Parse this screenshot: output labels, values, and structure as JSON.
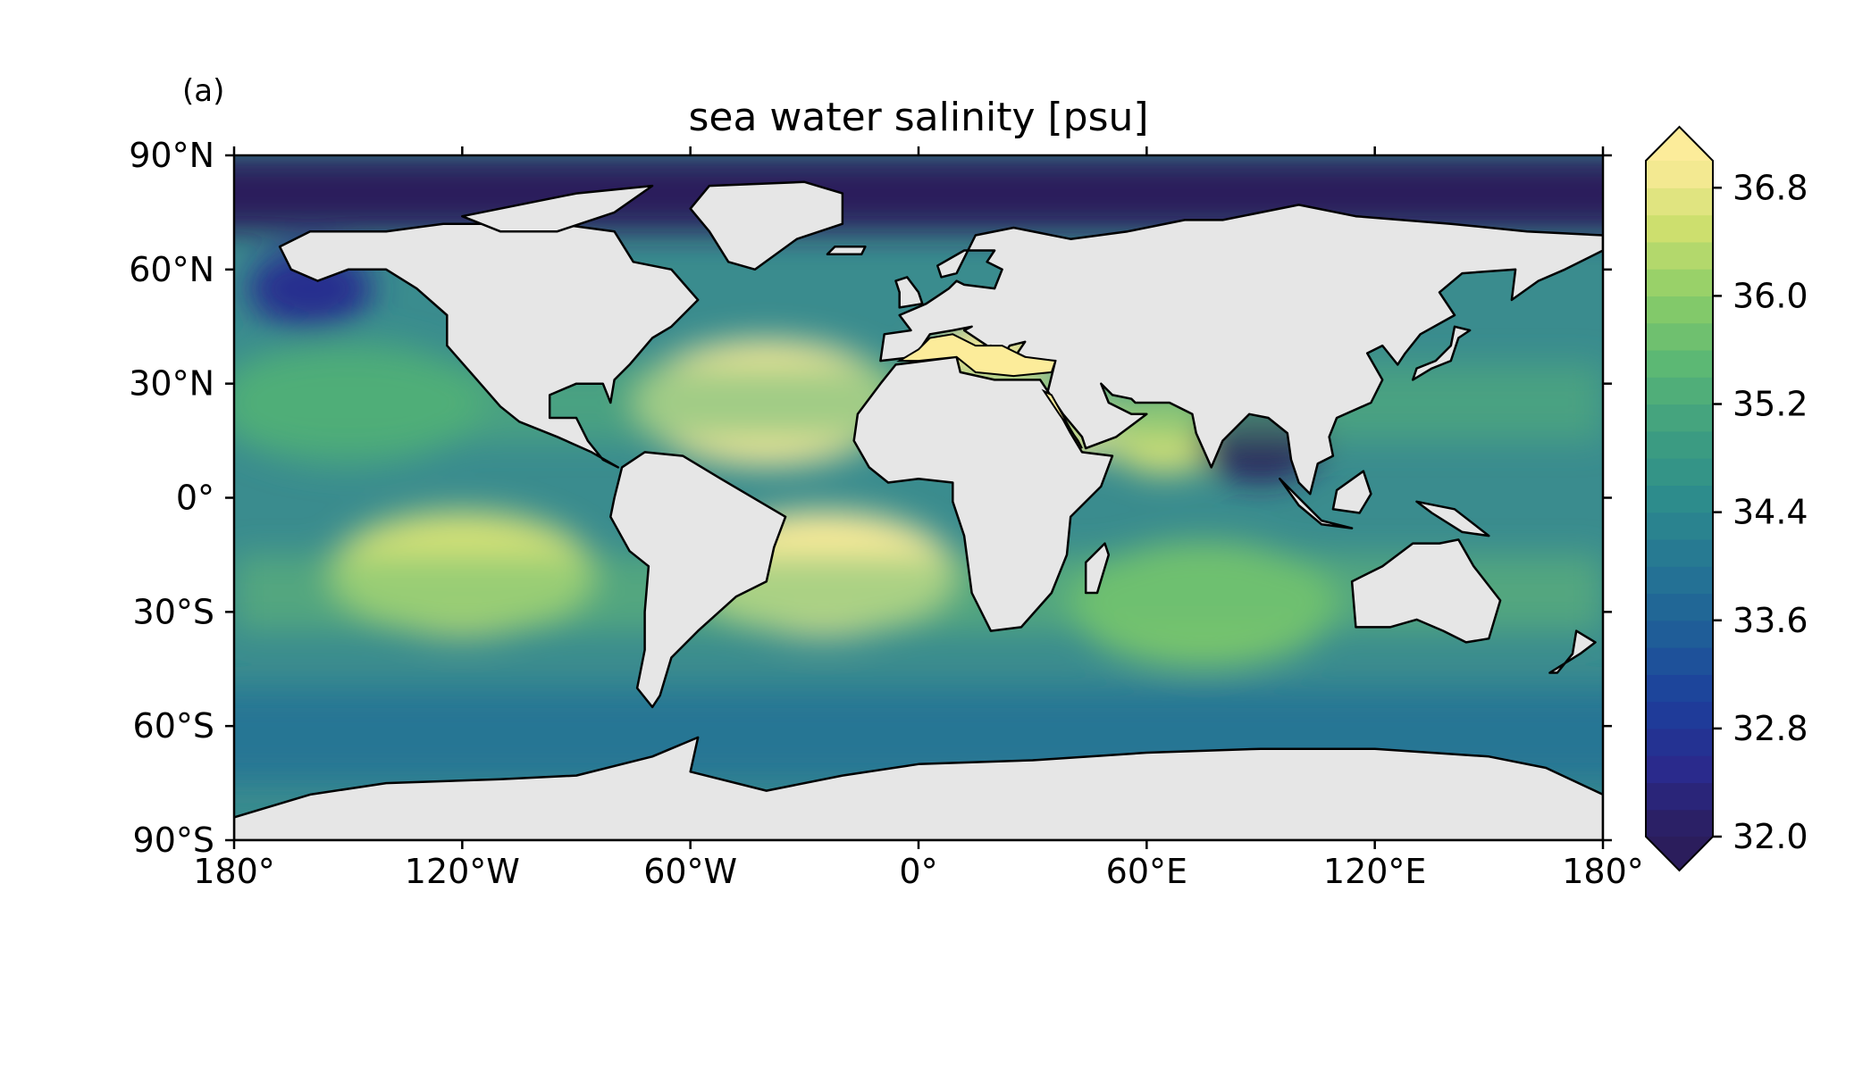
{
  "panel_label": "(a)",
  "title": "sea water salinity [psu]",
  "map": {
    "projection": "plate-carree",
    "lon_range": [
      -180,
      180
    ],
    "lat_range": [
      -90,
      90
    ],
    "x_tick_values": [
      -180,
      -120,
      -60,
      0,
      60,
      120,
      180
    ],
    "x_tick_labels": [
      "180°",
      "120°W",
      "60°W",
      "0°",
      "60°E",
      "120°E",
      "180°"
    ],
    "y_tick_values": [
      90,
      60,
      30,
      0,
      -30,
      -60,
      -90
    ],
    "y_tick_labels": [
      "90°N",
      "60°N",
      "30°N",
      "0°",
      "30°S",
      "60°S",
      "90°S"
    ],
    "land_color": "#e6e6e6",
    "coastline_color": "#000000",
    "ocean_field": {
      "variable": "sea water salinity",
      "units": "psu",
      "features": [
        {
          "name": "arctic-fresh",
          "lat_range": [
            70,
            90
          ],
          "value": 31.5
        },
        {
          "name": "north-atlantic-subtropical-max",
          "lon": -40,
          "lat": 25,
          "value": 37.2
        },
        {
          "name": "south-atlantic-subtropical-max",
          "lon": -25,
          "lat": -20,
          "value": 37.0
        },
        {
          "name": "south-pacific-subtropical-max",
          "lon": -120,
          "lat": -20,
          "value": 36.6
        },
        {
          "name": "north-pacific-subtropical-max",
          "lon": -150,
          "lat": 25,
          "value": 35.2
        },
        {
          "name": "arabian-sea-max",
          "lon": 65,
          "lat": 17,
          "value": 36.6
        },
        {
          "name": "south-indian-subtropical-max",
          "lon": 75,
          "lat": -28,
          "value": 35.8
        },
        {
          "name": "bay-of-bengal-fresh",
          "lon": 90,
          "lat": 15,
          "value": 32.0
        },
        {
          "name": "north-pacific-subpolar-fresh",
          "lon": -160,
          "lat": 55,
          "value": 32.6
        },
        {
          "name": "southern-ocean-band",
          "lat_range": [
            -75,
            -50
          ],
          "value": 34.0
        },
        {
          "name": "mediterranean",
          "lon": 18,
          "lat": 36,
          "value": 38.5
        },
        {
          "name": "red-sea",
          "lon": 38,
          "lat": 20,
          "value": 39.5
        }
      ]
    }
  },
  "colorbar": {
    "min": 32.0,
    "max": 37.0,
    "step": 0.2,
    "extend": "both",
    "tick_values": [
      32.0,
      32.8,
      33.6,
      34.4,
      35.2,
      36.0,
      36.8
    ],
    "tick_labels": [
      "32.0",
      "32.8",
      "33.6",
      "34.4",
      "35.2",
      "36.0",
      "36.8"
    ],
    "colormap_stops": [
      "#2b1d5c",
      "#2a2a8c",
      "#1c3f9c",
      "#1f5d98",
      "#257694",
      "#2d8c8c",
      "#3f9f80",
      "#5cb874",
      "#8ccd68",
      "#cddf6e",
      "#fcec9a"
    ],
    "under_color": "#2b1d5c",
    "over_color": "#fcec9a"
  }
}
